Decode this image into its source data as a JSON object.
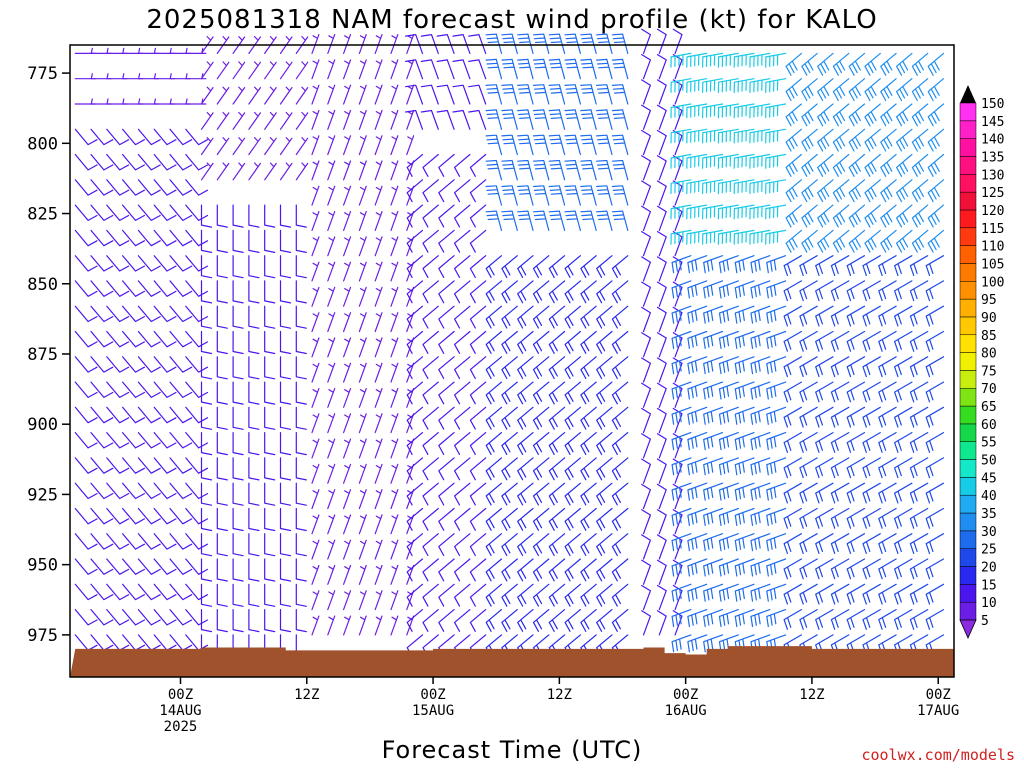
{
  "chart_data": {
    "type": "wind-barb time-height profile",
    "title": "2025081318 NAM forecast wind profile (kt) for KALO",
    "xlabel": "Forecast Time (UTC)",
    "ylabel": "",
    "credit": "coolwx.com/models",
    "y_axis": {
      "units": "hPa",
      "inverted": true,
      "range": [
        765,
        990
      ],
      "ticks": [
        775,
        800,
        825,
        850,
        875,
        900,
        925,
        950,
        975
      ]
    },
    "x_axis": {
      "range_hours": [
        -10.5,
        73.5
      ],
      "ticks": [
        {
          "hour": 0,
          "lines": [
            "00Z",
            "14AUG",
            "2025"
          ]
        },
        {
          "hour": 12,
          "lines": [
            "12Z"
          ]
        },
        {
          "hour": 24,
          "lines": [
            "00Z",
            "15AUG"
          ]
        },
        {
          "hour": 36,
          "lines": [
            "12Z"
          ]
        },
        {
          "hour": 48,
          "lines": [
            "00Z",
            "16AUG"
          ]
        },
        {
          "hour": 60,
          "lines": [
            "12Z"
          ]
        },
        {
          "hour": 72,
          "lines": [
            "00Z",
            "17AUG"
          ]
        }
      ]
    },
    "surface_pressure_hpa": [
      {
        "hour": -10,
        "p": 980
      },
      {
        "hour": 2,
        "p": 979.5
      },
      {
        "hour": 10,
        "p": 980.5
      },
      {
        "hour": 24,
        "p": 980
      },
      {
        "hour": 40,
        "p": 980
      },
      {
        "hour": 44,
        "p": 979.5
      },
      {
        "hour": 46,
        "p": 981.5
      },
      {
        "hour": 48,
        "p": 982
      },
      {
        "hour": 50,
        "p": 980
      },
      {
        "hour": 52,
        "p": 979
      },
      {
        "hour": 60,
        "p": 980
      },
      {
        "hour": 74,
        "p": 979.5
      }
    ],
    "terrain_color": "#a0522d",
    "colorbar": {
      "levels": [
        5,
        10,
        15,
        20,
        25,
        30,
        35,
        40,
        45,
        50,
        55,
        60,
        65,
        70,
        75,
        80,
        85,
        90,
        95,
        100,
        105,
        110,
        115,
        120,
        125,
        130,
        135,
        140,
        145,
        150
      ],
      "colors": [
        "#8a2be2",
        "#6a1ee6",
        "#4b16ee",
        "#2828f0",
        "#1f48ea",
        "#1e6cee",
        "#1f8ef0",
        "#20aaf2",
        "#17cce6",
        "#15e8c8",
        "#10e890",
        "#14d84a",
        "#35dc20",
        "#7ee414",
        "#c8ee10",
        "#f0f000",
        "#ffe000",
        "#ffc800",
        "#ffb000",
        "#ff9000",
        "#ff7a00",
        "#ff6000",
        "#ff3a10",
        "#ff1a20",
        "#f0103a",
        "#ff1060",
        "#ff1080",
        "#ff10a0",
        "#ff20c8",
        "#ff30f0"
      ]
    },
    "wind_regimes": [
      {
        "hours": [
          -10,
          2
        ],
        "below_hpa": 790,
        "dir_deg": 90,
        "speed_kt": 7
      },
      {
        "hours": [
          -10,
          2
        ],
        "above_hpa": 790,
        "dir_deg": 140,
        "speed_kt": 10
      },
      {
        "hours": [
          2,
          12
        ],
        "below_hpa": 820,
        "dir_deg": 35,
        "speed_kt": 6
      },
      {
        "hours": [
          2,
          12
        ],
        "above_hpa": 820,
        "dir_deg": 180,
        "speed_kt": 12
      },
      {
        "hours": [
          12,
          23
        ],
        "all": true,
        "dir_deg": 20,
        "speed_kt": 6
      },
      {
        "hours": [
          23,
          30
        ],
        "below_hpa": 800,
        "dir_deg": 340,
        "speed_kt": 10
      },
      {
        "hours": [
          23,
          30
        ],
        "above_hpa": 800,
        "dir_deg": 230,
        "speed_kt": 12
      },
      {
        "hours": [
          30,
          44
        ],
        "below_hpa": 840,
        "dir_deg": 345,
        "speed_kt": 28
      },
      {
        "hours": [
          30,
          44
        ],
        "above_hpa": 840,
        "dir_deg": 230,
        "speed_kt": 18
      },
      {
        "hours": [
          44,
          48
        ],
        "all": true,
        "dir_deg": 20,
        "speed_kt": 10
      },
      {
        "hours": [
          48,
          58
        ],
        "below_hpa": 840,
        "dir_deg": 260,
        "speed_kt": 42
      },
      {
        "hours": [
          48,
          58
        ],
        "above_hpa": 840,
        "dir_deg": 250,
        "speed_kt": 28
      },
      {
        "hours": [
          58,
          74
        ],
        "below_hpa": 840,
        "dir_deg": 230,
        "speed_kt": 32
      },
      {
        "hours": [
          58,
          74
        ],
        "above_hpa": 840,
        "dir_deg": 240,
        "speed_kt": 22
      }
    ],
    "grid": false,
    "legend": "colorbar-right"
  }
}
